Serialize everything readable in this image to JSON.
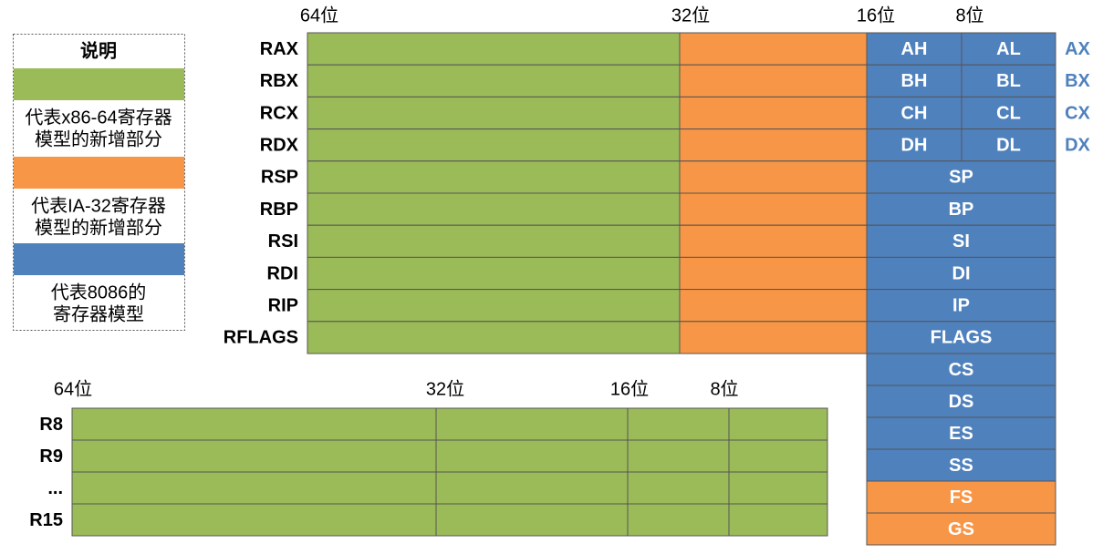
{
  "colors": {
    "x86_64": "#9bbb59",
    "ia32": "#f79646",
    "i8086": "#4f81bd"
  },
  "legend": {
    "title": "说明",
    "items": [
      {
        "color": "#9bbb59",
        "text": [
          "代表x86-64寄存器",
          "模型的新增部分"
        ]
      },
      {
        "color": "#f79646",
        "text": [
          "代表IA-32寄存器",
          "模型的新增部分"
        ]
      },
      {
        "color": "#4f81bd",
        "text": [
          "代表8086的",
          "寄存器模型"
        ]
      }
    ]
  },
  "top_table": {
    "headers": [
      "64位",
      "32位",
      "16位",
      "8位"
    ],
    "rows": [
      {
        "name": "RAX",
        "high": "AH",
        "low": "AL",
        "alias": "AX"
      },
      {
        "name": "RBX",
        "high": "BH",
        "low": "BL",
        "alias": "BX"
      },
      {
        "name": "RCX",
        "high": "CH",
        "low": "CL",
        "alias": "CX"
      },
      {
        "name": "RDX",
        "high": "DH",
        "low": "DL",
        "alias": "DX"
      },
      {
        "name": "RSP",
        "low16": "SP"
      },
      {
        "name": "RBP",
        "low16": "BP"
      },
      {
        "name": "RSI",
        "low16": "SI"
      },
      {
        "name": "RDI",
        "low16": "DI"
      },
      {
        "name": "RIP",
        "low16": "IP"
      },
      {
        "name": "RFLAGS",
        "low16": "FLAGS"
      }
    ],
    "segments": [
      {
        "name": "CS",
        "color": "#4f81bd"
      },
      {
        "name": "DS",
        "color": "#4f81bd"
      },
      {
        "name": "ES",
        "color": "#4f81bd"
      },
      {
        "name": "SS",
        "color": "#4f81bd"
      },
      {
        "name": "FS",
        "color": "#f79646"
      },
      {
        "name": "GS",
        "color": "#f79646"
      }
    ]
  },
  "bottom_table": {
    "headers": [
      "64位",
      "32位",
      "16位",
      "8位"
    ],
    "rows": [
      "R8",
      "R9",
      "...",
      "R15"
    ]
  }
}
